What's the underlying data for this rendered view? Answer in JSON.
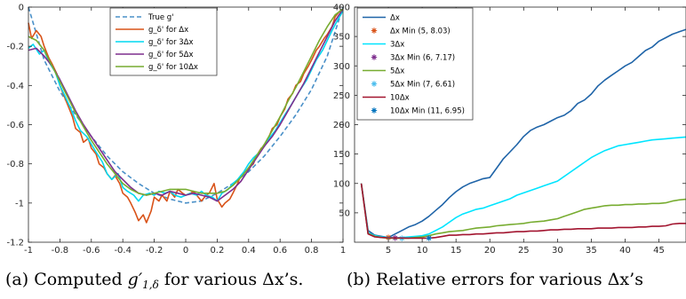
{
  "captions": {
    "left_prefix": "(a) Computed ",
    "left_symbol": "g′",
    "left_sub": "1,δ",
    "left_suffix": " for various Δx’s.",
    "right": "(b) Relative errors for various Δx’s"
  },
  "chart_data": [
    {
      "type": "line",
      "xlim": [
        -1,
        1
      ],
      "ylim": [
        -1.2,
        0
      ],
      "xticks": [
        -1,
        -0.8,
        -0.6,
        -0.4,
        -0.2,
        0,
        0.2,
        0.4,
        0.6,
        0.8,
        1
      ],
      "xtick_labels": [
        "-1",
        "-0.8",
        "-0.6",
        "-0.4",
        "-0.2",
        "0",
        "0.2",
        "0.4",
        "0.6",
        "0.8",
        "1"
      ],
      "yticks": [
        0,
        -0.2,
        -0.4,
        -0.6,
        -0.8,
        -1,
        -1.2
      ],
      "ytick_labels": [
        "0",
        "-0.2",
        "-0.4",
        "-0.6",
        "-0.8",
        "-1",
        "-1.2"
      ],
      "legend_position": "top-right",
      "series": [
        {
          "name": "True g'",
          "color": "#4a90c8",
          "dashed": true,
          "x": [
            -1,
            -0.9,
            -0.8,
            -0.7,
            -0.6,
            -0.5,
            -0.4,
            -0.3,
            -0.2,
            -0.1,
            0,
            0.1,
            0.2,
            0.3,
            0.4,
            0.5,
            0.6,
            0.7,
            0.8,
            0.9,
            1
          ],
          "y": [
            0,
            -0.27,
            -0.43,
            -0.55,
            -0.66,
            -0.76,
            -0.84,
            -0.9,
            -0.95,
            -0.98,
            -1,
            -0.99,
            -0.95,
            -0.9,
            -0.84,
            -0.76,
            -0.66,
            -0.55,
            -0.42,
            -0.25,
            0
          ]
        },
        {
          "name": "g_δ' for Δx",
          "color": "#d95319",
          "dashed": false,
          "x": [
            -1,
            -0.98,
            -0.95,
            -0.92,
            -0.9,
            -0.87,
            -0.85,
            -0.82,
            -0.8,
            -0.78,
            -0.75,
            -0.72,
            -0.7,
            -0.67,
            -0.65,
            -0.62,
            -0.6,
            -0.57,
            -0.55,
            -0.52,
            -0.5,
            -0.47,
            -0.45,
            -0.42,
            -0.4,
            -0.37,
            -0.35,
            -0.32,
            -0.3,
            -0.27,
            -0.25,
            -0.22,
            -0.2,
            -0.17,
            -0.15,
            -0.12,
            -0.1,
            -0.07,
            -0.05,
            -0.02,
            0,
            0.03,
            0.05,
            0.08,
            0.1,
            0.13,
            0.15,
            0.18,
            0.2,
            0.23,
            0.25,
            0.28,
            0.3,
            0.33,
            0.35,
            0.38,
            0.4,
            0.43,
            0.45,
            0.48,
            0.5,
            0.53,
            0.55,
            0.58,
            0.6,
            0.63,
            0.65,
            0.68,
            0.7,
            0.73,
            0.75,
            0.78,
            0.8,
            0.83,
            0.85,
            0.88,
            0.9,
            0.93,
            0.95,
            0.98,
            1
          ],
          "y": [
            -0.08,
            -0.16,
            -0.12,
            -0.15,
            -0.2,
            -0.26,
            -0.29,
            -0.34,
            -0.4,
            -0.44,
            -0.5,
            -0.56,
            -0.62,
            -0.64,
            -0.69,
            -0.67,
            -0.72,
            -0.75,
            -0.8,
            -0.82,
            -0.85,
            -0.88,
            -0.86,
            -0.9,
            -0.95,
            -0.97,
            -1.0,
            -1.05,
            -1.09,
            -1.06,
            -1.1,
            -1.04,
            -0.97,
            -0.99,
            -0.96,
            -0.99,
            -0.94,
            -0.97,
            -0.93,
            -0.95,
            -0.96,
            -0.95,
            -0.94,
            -0.97,
            -0.99,
            -0.96,
            -0.95,
            -0.9,
            -0.98,
            -1.02,
            -1.0,
            -0.98,
            -0.95,
            -0.9,
            -0.86,
            -0.84,
            -0.82,
            -0.8,
            -0.76,
            -0.72,
            -0.71,
            -0.66,
            -0.62,
            -0.6,
            -0.56,
            -0.52,
            -0.47,
            -0.44,
            -0.4,
            -0.38,
            -0.34,
            -0.3,
            -0.27,
            -0.22,
            -0.2,
            -0.16,
            -0.14,
            -0.1,
            -0.05,
            -0.02,
            -0.01
          ]
        },
        {
          "name": "g_δ' for 3Δx",
          "color": "#00d8f0",
          "dashed": false,
          "x": [
            -1,
            -0.97,
            -0.93,
            -0.9,
            -0.87,
            -0.83,
            -0.8,
            -0.77,
            -0.73,
            -0.7,
            -0.67,
            -0.63,
            -0.6,
            -0.57,
            -0.53,
            -0.5,
            -0.47,
            -0.43,
            -0.4,
            -0.37,
            -0.33,
            -0.3,
            -0.27,
            -0.23,
            -0.2,
            -0.17,
            -0.13,
            -0.1,
            -0.07,
            -0.03,
            0,
            0.03,
            0.07,
            0.1,
            0.13,
            0.17,
            0.2,
            0.23,
            0.27,
            0.3,
            0.33,
            0.37,
            0.4,
            0.43,
            0.47,
            0.5,
            0.53,
            0.57,
            0.6,
            0.63,
            0.67,
            0.7,
            0.73,
            0.77,
            0.8,
            0.83,
            0.87,
            0.9,
            0.93,
            0.97,
            1
          ],
          "y": [
            -0.21,
            -0.19,
            -0.24,
            -0.22,
            -0.28,
            -0.33,
            -0.4,
            -0.45,
            -0.52,
            -0.58,
            -0.63,
            -0.66,
            -0.7,
            -0.74,
            -0.79,
            -0.85,
            -0.88,
            -0.85,
            -0.92,
            -0.94,
            -0.96,
            -0.99,
            -0.96,
            -0.95,
            -0.96,
            -0.94,
            -0.95,
            -0.94,
            -0.96,
            -0.97,
            -0.96,
            -0.95,
            -0.96,
            -0.94,
            -0.96,
            -0.97,
            -0.99,
            -0.95,
            -0.93,
            -0.9,
            -0.88,
            -0.84,
            -0.8,
            -0.77,
            -0.74,
            -0.71,
            -0.67,
            -0.63,
            -0.59,
            -0.55,
            -0.5,
            -0.46,
            -0.42,
            -0.37,
            -0.32,
            -0.27,
            -0.22,
            -0.17,
            -0.12,
            -0.06,
            -0.02
          ]
        },
        {
          "name": "g_δ' for 5Δx",
          "color": "#7e2f8e",
          "dashed": false,
          "x": [
            -1,
            -0.95,
            -0.9,
            -0.85,
            -0.8,
            -0.75,
            -0.7,
            -0.65,
            -0.6,
            -0.55,
            -0.5,
            -0.45,
            -0.4,
            -0.35,
            -0.3,
            -0.25,
            -0.2,
            -0.15,
            -0.1,
            -0.05,
            0,
            0.05,
            0.1,
            0.15,
            0.2,
            0.25,
            0.3,
            0.35,
            0.4,
            0.45,
            0.5,
            0.55,
            0.6,
            0.65,
            0.7,
            0.75,
            0.8,
            0.85,
            0.9,
            0.95,
            1
          ],
          "y": [
            -0.22,
            -0.21,
            -0.25,
            -0.3,
            -0.37,
            -0.45,
            -0.53,
            -0.6,
            -0.66,
            -0.72,
            -0.78,
            -0.84,
            -0.88,
            -0.92,
            -0.95,
            -0.96,
            -0.95,
            -0.96,
            -0.94,
            -0.95,
            -0.96,
            -0.95,
            -0.96,
            -0.97,
            -0.99,
            -0.96,
            -0.93,
            -0.89,
            -0.83,
            -0.77,
            -0.71,
            -0.66,
            -0.6,
            -0.53,
            -0.46,
            -0.39,
            -0.31,
            -0.23,
            -0.15,
            -0.07,
            -0.01
          ]
        },
        {
          "name": "g_δ' for 10Δx",
          "color": "#77ac30",
          "dashed": false,
          "x": [
            -1,
            -0.95,
            -0.9,
            -0.85,
            -0.8,
            -0.75,
            -0.7,
            -0.65,
            -0.6,
            -0.55,
            -0.5,
            -0.45,
            -0.4,
            -0.35,
            -0.3,
            -0.25,
            -0.2,
            -0.15,
            -0.1,
            -0.05,
            0,
            0.05,
            0.1,
            0.15,
            0.2,
            0.25,
            0.3,
            0.35,
            0.4,
            0.45,
            0.5,
            0.55,
            0.6,
            0.65,
            0.7,
            0.75,
            0.8,
            0.85,
            0.9,
            0.95,
            1
          ],
          "y": [
            -0.15,
            -0.17,
            -0.22,
            -0.3,
            -0.38,
            -0.46,
            -0.54,
            -0.61,
            -0.68,
            -0.74,
            -0.8,
            -0.85,
            -0.9,
            -0.93,
            -0.95,
            -0.96,
            -0.95,
            -0.94,
            -0.93,
            -0.93,
            -0.93,
            -0.94,
            -0.95,
            -0.95,
            -0.95,
            -0.94,
            -0.91,
            -0.87,
            -0.82,
            -0.76,
            -0.7,
            -0.63,
            -0.56,
            -0.48,
            -0.41,
            -0.33,
            -0.25,
            -0.17,
            -0.1,
            -0.04,
            -0.01
          ]
        }
      ]
    },
    {
      "type": "line",
      "xlim": [
        0,
        49
      ],
      "ylim": [
        0,
        400
      ],
      "xticks": [
        5,
        10,
        15,
        20,
        25,
        30,
        35,
        40,
        45
      ],
      "xtick_labels": [
        "5",
        "10",
        "15",
        "20",
        "25",
        "30",
        "35",
        "40",
        "45"
      ],
      "yticks": [
        50,
        100,
        150,
        200,
        250,
        300,
        350,
        400
      ],
      "ytick_labels": [
        "50",
        "100",
        "150",
        "200",
        "250",
        "300",
        "350",
        "400"
      ],
      "legend_position": "top-left",
      "series": [
        {
          "name": "Δx",
          "color": "#1f64a8",
          "x": [
            1,
            2,
            3,
            4,
            5,
            6,
            7,
            8,
            9,
            10,
            11,
            12,
            13,
            14,
            15,
            16,
            17,
            18,
            19,
            20,
            21,
            22,
            23,
            24,
            25,
            26,
            27,
            28,
            29,
            30,
            31,
            32,
            33,
            34,
            35,
            36,
            37,
            38,
            39,
            40,
            41,
            42,
            43,
            44,
            45,
            46,
            47,
            48,
            49
          ],
          "y": [
            100,
            20,
            12,
            10,
            8.03,
            14,
            20,
            26,
            30,
            36,
            44,
            54,
            64,
            76,
            86,
            94,
            100,
            104,
            108,
            110,
            126,
            142,
            154,
            166,
            180,
            190,
            196,
            200,
            206,
            212,
            216,
            224,
            236,
            242,
            252,
            266,
            276,
            284,
            292,
            300,
            306,
            316,
            326,
            332,
            342,
            348,
            354,
            358,
            362
          ]
        },
        {
          "name": "Δx Min (5, 8.03)",
          "color": "#d95319",
          "marker": "asterisk",
          "x": [
            5
          ],
          "y": [
            8.03
          ]
        },
        {
          "name": "3Δx",
          "color": "#00e5ff",
          "x": [
            1,
            2,
            3,
            4,
            5,
            6,
            7,
            8,
            9,
            10,
            11,
            12,
            13,
            14,
            15,
            16,
            17,
            18,
            19,
            20,
            21,
            22,
            23,
            24,
            25,
            26,
            27,
            28,
            29,
            30,
            31,
            32,
            33,
            34,
            35,
            36,
            37,
            38,
            39,
            40,
            41,
            42,
            43,
            44,
            45,
            46,
            47,
            48,
            49
          ],
          "y": [
            100,
            16,
            11,
            9,
            8,
            7.17,
            8,
            9,
            10,
            11,
            14,
            20,
            26,
            34,
            42,
            48,
            52,
            56,
            58,
            62,
            66,
            70,
            74,
            80,
            84,
            88,
            92,
            96,
            100,
            104,
            112,
            120,
            128,
            136,
            144,
            150,
            156,
            160,
            164,
            166,
            168,
            170,
            172,
            174,
            175,
            176,
            177,
            178,
            179
          ]
        },
        {
          "name": "3Δx Min (6, 7.17)",
          "color": "#7e2f8e",
          "marker": "asterisk",
          "x": [
            6
          ],
          "y": [
            7.17
          ]
        },
        {
          "name": "5Δx",
          "color": "#77ac30",
          "x": [
            1,
            2,
            3,
            4,
            5,
            6,
            7,
            8,
            9,
            10,
            11,
            12,
            13,
            14,
            15,
            16,
            17,
            18,
            19,
            20,
            21,
            22,
            23,
            24,
            25,
            26,
            27,
            28,
            29,
            30,
            31,
            32,
            33,
            34,
            35,
            36,
            37,
            38,
            39,
            40,
            41,
            42,
            43,
            44,
            45,
            46,
            47,
            48,
            49
          ],
          "y": [
            100,
            15,
            10,
            8,
            7,
            6.9,
            6.61,
            7,
            8,
            9,
            11,
            14,
            16,
            18,
            19,
            20,
            22,
            24,
            25,
            26,
            28,
            29,
            30,
            31,
            32,
            34,
            35,
            36,
            38,
            40,
            44,
            48,
            52,
            56,
            58,
            60,
            62,
            63,
            63,
            64,
            64,
            65,
            65,
            66,
            66,
            67,
            70,
            72,
            73
          ]
        },
        {
          "name": "5Δx Min (7, 6.61)",
          "color": "#4dbeee",
          "marker": "asterisk",
          "x": [
            7
          ],
          "y": [
            6.61
          ]
        },
        {
          "name": "10Δx",
          "color": "#a2142f",
          "x": [
            1,
            2,
            3,
            4,
            5,
            6,
            7,
            8,
            9,
            10,
            11,
            12,
            13,
            14,
            15,
            16,
            17,
            18,
            19,
            20,
            21,
            22,
            23,
            24,
            25,
            26,
            27,
            28,
            29,
            30,
            31,
            32,
            33,
            34,
            35,
            36,
            37,
            38,
            39,
            40,
            41,
            42,
            43,
            44,
            45,
            46,
            47,
            48,
            49
          ],
          "y": [
            100,
            14,
            9,
            8,
            7.5,
            7.2,
            7.1,
            7,
            7,
            7,
            6.95,
            8,
            10,
            12,
            12,
            13,
            13,
            14,
            14,
            15,
            16,
            16,
            17,
            18,
            18,
            19,
            19,
            20,
            21,
            21,
            22,
            22,
            23,
            23,
            23,
            24,
            24,
            24,
            25,
            25,
            25,
            26,
            26,
            27,
            27,
            28,
            31,
            32,
            32
          ]
        },
        {
          "name": "10Δx Min (11, 6.95)",
          "color": "#0072bd",
          "marker": "asterisk",
          "x": [
            11
          ],
          "y": [
            6.95
          ]
        }
      ]
    }
  ]
}
